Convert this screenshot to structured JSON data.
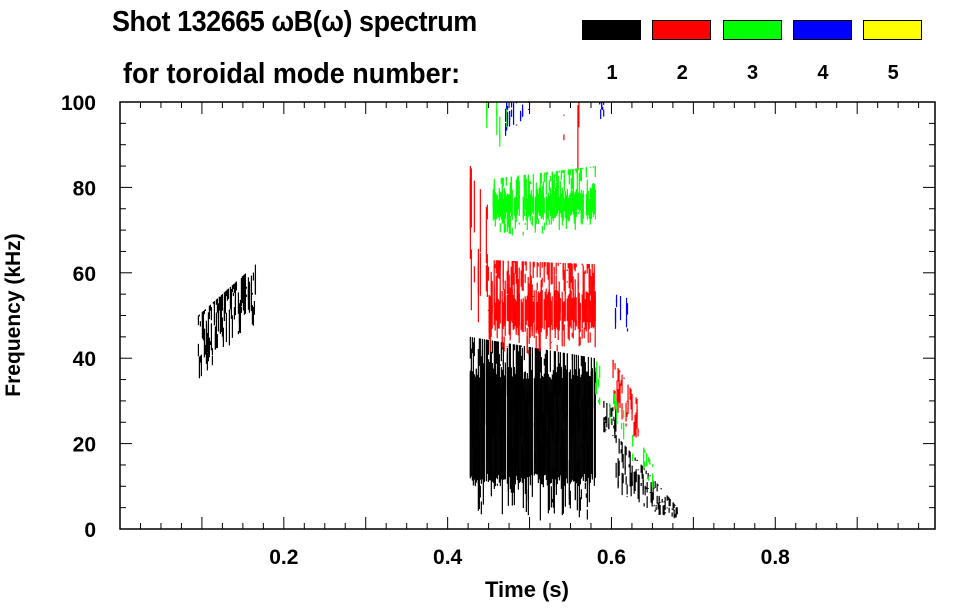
{
  "chart_data": {
    "type": "heatmap",
    "title": "Shot 132665 ωB(ω) spectrum",
    "subtitle": "for toroidal mode number:",
    "xlabel": "Time (s)",
    "ylabel": "Frequency (kHz)",
    "xlim": [
      0,
      0.995
    ],
    "ylim": [
      0,
      100
    ],
    "xticks": [
      0.2,
      0.4,
      0.6,
      0.8
    ],
    "xtick_labels": [
      "0.2",
      "0.4",
      "0.6",
      "0.8"
    ],
    "yticks": [
      0,
      20,
      40,
      60,
      80,
      100
    ],
    "ytick_labels": [
      "0",
      "20",
      "40",
      "60",
      "80",
      "100"
    ],
    "grid": false,
    "legend_position": "top-right",
    "legend": [
      {
        "label": "1",
        "color": "#000000"
      },
      {
        "label": "2",
        "color": "#ff0000"
      },
      {
        "label": "3",
        "color": "#00ff00"
      },
      {
        "label": "4",
        "color": "#0000ff"
      },
      {
        "label": "5",
        "color": "#ffff00"
      }
    ],
    "regions": [
      {
        "mode": 1,
        "t": [
          0.095,
          0.165
        ],
        "f_start": [
          35,
          50
        ],
        "f_end": [
          48,
          62
        ],
        "density": 0.9
      },
      {
        "mode": 1,
        "t": [
          0.427,
          0.58
        ],
        "f_start": [
          2,
          45
        ],
        "f_end": [
          2,
          40
        ],
        "core": [
          10,
          38
        ],
        "density": 0.95
      },
      {
        "mode": 1,
        "t": [
          0.59,
          0.605
        ],
        "f_start": [
          22,
          30
        ],
        "f_end": [
          20,
          28
        ],
        "density": 0.9
      },
      {
        "mode": 1,
        "t": [
          0.605,
          0.68
        ],
        "f_start": [
          8,
          22
        ],
        "f_end": [
          1,
          5
        ],
        "density": 0.9
      },
      {
        "mode": 2,
        "t": [
          0.427,
          0.45
        ],
        "f_start": [
          50,
          85
        ],
        "f_end": [
          45,
          75
        ],
        "density": 0.4
      },
      {
        "mode": 2,
        "t": [
          0.45,
          0.58
        ],
        "f_start": [
          40,
          63
        ],
        "f_end": [
          42,
          62
        ],
        "core": [
          46,
          56
        ],
        "density": 0.9
      },
      {
        "mode": 2,
        "t": [
          0.54,
          0.585
        ],
        "f_start": [
          70,
          100
        ],
        "f_end": [
          68,
          100
        ],
        "density": 0.15
      },
      {
        "mode": 2,
        "t": [
          0.6,
          0.632
        ],
        "f_start": [
          28,
          40
        ],
        "f_end": [
          20,
          30
        ],
        "density": 0.8
      },
      {
        "mode": 3,
        "t": [
          0.455,
          0.58
        ],
        "f_start": [
          68,
          82
        ],
        "f_end": [
          70,
          85
        ],
        "core": [
          72,
          80
        ],
        "density": 0.9
      },
      {
        "mode": 3,
        "t": [
          0.58,
          0.65
        ],
        "f_start": [
          30,
          40
        ],
        "f_end": [
          8,
          15
        ],
        "density": 0.25
      },
      {
        "mode": 3,
        "t": [
          0.43,
          0.5
        ],
        "f_start": [
          85,
          100
        ],
        "f_end": [
          88,
          100
        ],
        "density": 0.08
      },
      {
        "mode": 4,
        "t": [
          0.47,
          0.5
        ],
        "f_start": [
          92,
          100
        ],
        "f_end": [
          95,
          100
        ],
        "density": 0.5
      },
      {
        "mode": 4,
        "t": [
          0.603,
          0.62
        ],
        "f_start": [
          45,
          55
        ],
        "f_end": [
          44,
          54
        ],
        "density": 0.4
      },
      {
        "mode": 4,
        "t": [
          0.58,
          0.59
        ],
        "f_start": [
          96,
          100
        ],
        "f_end": [
          96,
          100
        ],
        "density": 0.4
      }
    ]
  }
}
